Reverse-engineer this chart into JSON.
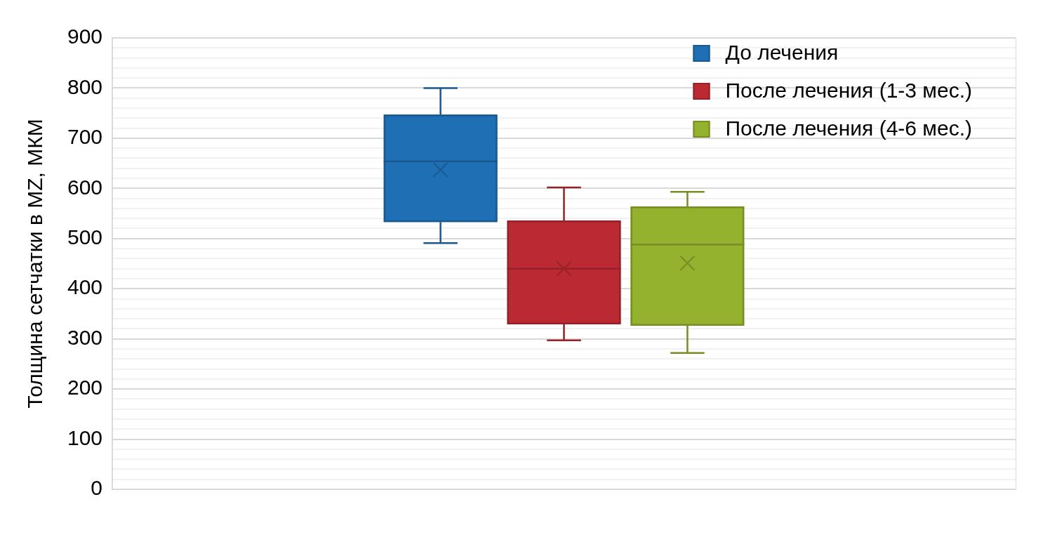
{
  "chart_data": {
    "type": "box",
    "ylabel": "Толщина сетчатки в MZ, МКМ",
    "categories": [
      null
    ],
    "tick_labels": "y",
    "series": [
      {
        "name": "До лечения",
        "color": "#1f6fb4",
        "boxes": [
          {
            "low": 491,
            "q1": 533,
            "median": 654,
            "q3": 747,
            "high": 800,
            "mean": 637
          }
        ]
      },
      {
        "name": "После лечения (1-3 мес.)",
        "color": "#bb2a33",
        "boxes": [
          {
            "low": 297,
            "q1": 329,
            "median": 440,
            "q3": 536,
            "high": 602,
            "mean": 440
          }
        ]
      },
      {
        "name": "После лечения (4-6 мес.)",
        "color": "#94b22e",
        "boxes": [
          {
            "low": 272,
            "q1": 326,
            "median": 488,
            "q3": 564,
            "high": 593,
            "mean": 451
          }
        ]
      }
    ],
    "ylim": [
      0,
      900
    ],
    "yticks": [
      0,
      {
        "value": 20,
        "label": null
      },
      {
        "value": 40,
        "label": null
      },
      {
        "value": 60,
        "label": null
      },
      {
        "value": 80,
        "label": null
      },
      100,
      {
        "value": 120,
        "label": null
      },
      {
        "value": 140,
        "label": null
      },
      {
        "value": 160,
        "label": null
      },
      {
        "value": 180,
        "label": null
      },
      200,
      {
        "value": 220,
        "label": null
      },
      {
        "value": 240,
        "label": null
      },
      {
        "value": 260,
        "label": null
      },
      {
        "value": 280,
        "label": null
      },
      300,
      {
        "value": 320,
        "label": null
      },
      {
        "value": 340,
        "label": null
      },
      {
        "value": 360,
        "label": null
      },
      {
        "value": 380,
        "label": null
      },
      400,
      {
        "value": 420,
        "label": null
      },
      {
        "value": 440,
        "label": null
      },
      {
        "value": 460,
        "label": null
      },
      {
        "value": 480,
        "label": null
      },
      500,
      {
        "value": 520,
        "label": null
      },
      {
        "value": 540,
        "label": null
      },
      {
        "value": 560,
        "label": null
      },
      {
        "value": 580,
        "label": null
      },
      600,
      {
        "value": 620,
        "label": null
      },
      {
        "value": 640,
        "label": null
      },
      {
        "value": 660,
        "label": null
      },
      {
        "value": 680,
        "label": null
      },
      700,
      {
        "value": 720,
        "label": null
      },
      {
        "value": 740,
        "label": null
      },
      {
        "value": 760,
        "label": null
      },
      {
        "value": 780,
        "label": null
      },
      800,
      {
        "value": 820,
        "label": null
      },
      {
        "value": 840,
        "label": null
      },
      {
        "value": 860,
        "label": null
      },
      {
        "value": 880,
        "label": null
      },
      900
    ],
    "grid": true,
    "legend": "top right"
  }
}
